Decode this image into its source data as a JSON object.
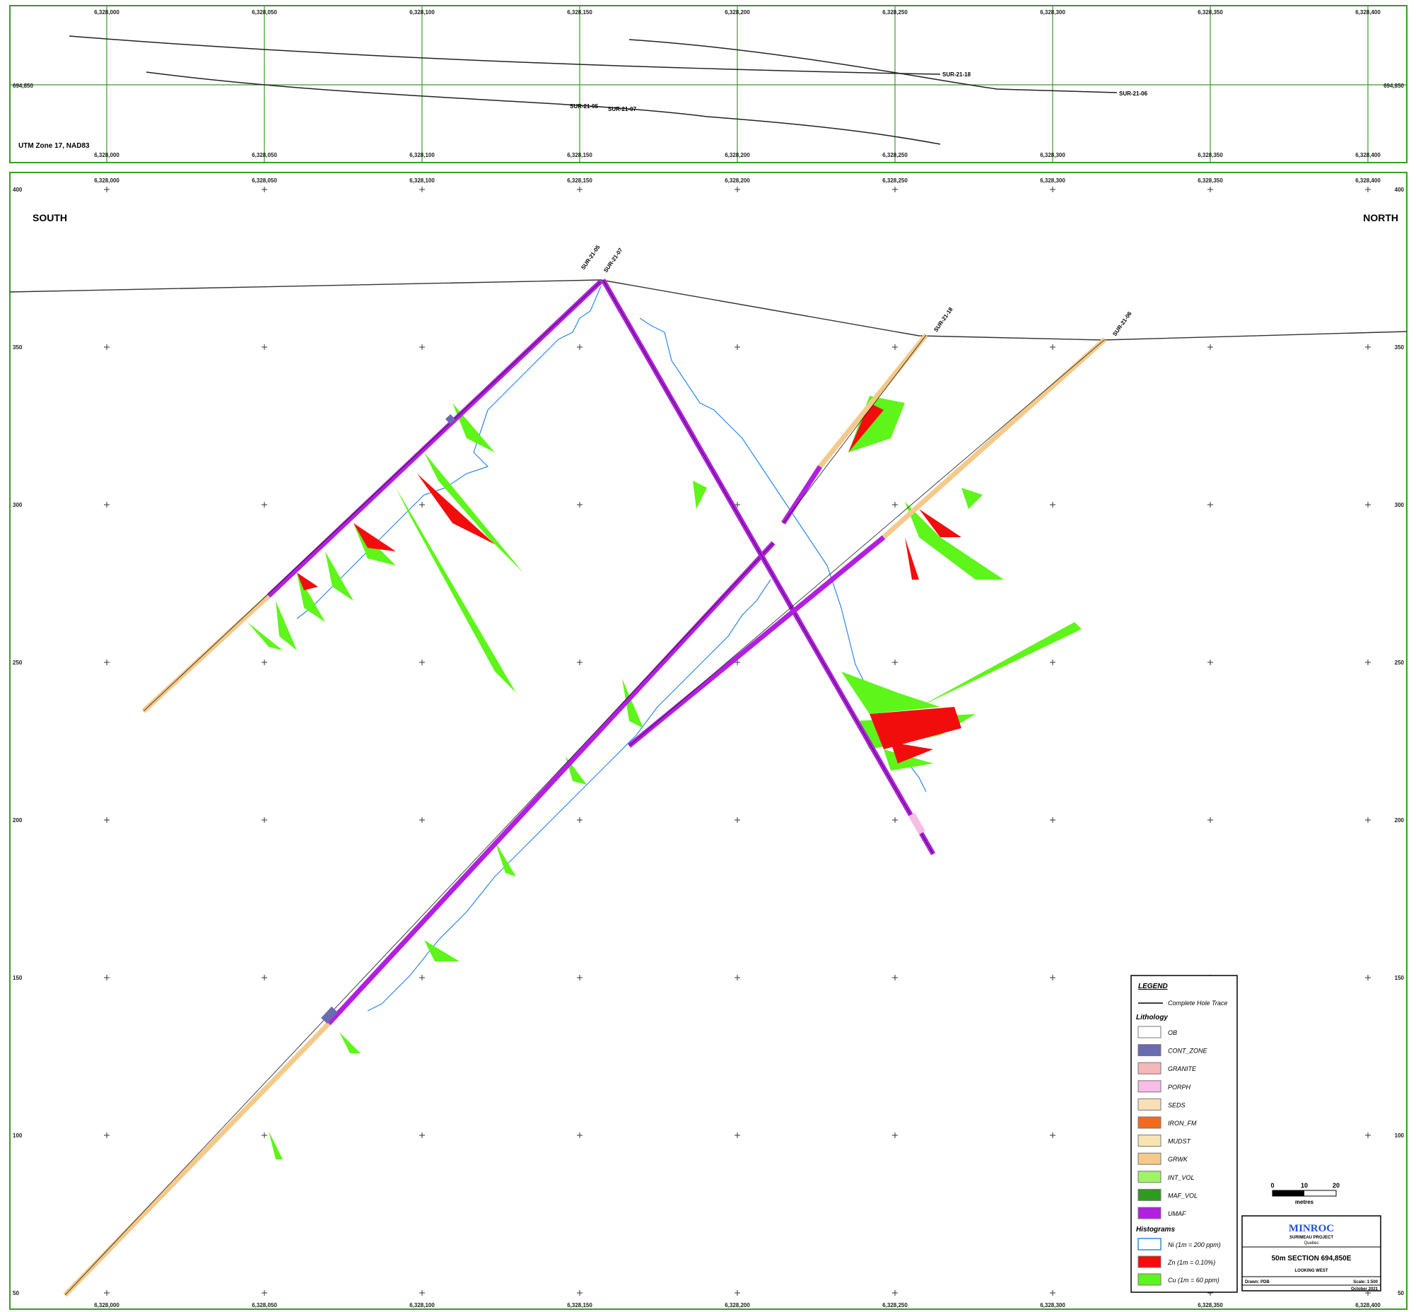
{
  "plan_view": {
    "crs_label": "UTM Zone 17, NAD83",
    "easting_ticks": [
      "6,328,000",
      "6,328,050",
      "6,328,100",
      "6,328,150",
      "6,328,200",
      "6,328,250",
      "6,328,300",
      "6,328,350",
      "6,328,400"
    ],
    "northing_label_left": "694,850",
    "northing_label_right": "694,850",
    "holes": [
      "SUR-21-18",
      "SUR-21-06",
      "SUR-21-05",
      "SUR-21-07"
    ]
  },
  "section_view": {
    "south_label": "SOUTH",
    "north_label": "NORTH",
    "easting_ticks": [
      "6,328,000",
      "6,328,050",
      "6,328,100",
      "6,328,150",
      "6,328,200",
      "6,328,250",
      "6,328,300",
      "6,328,350",
      "6,328,400"
    ],
    "elevation_ticks": [
      "400",
      "350",
      "300",
      "250",
      "200",
      "150",
      "100",
      "50"
    ],
    "holes": [
      {
        "name": "SUR-21-05",
        "collar": "SUR-21-05"
      },
      {
        "name": "SUR-21-07",
        "collar": "SUR-21-07"
      },
      {
        "name": "SUR-21-18",
        "collar": "SUR-21-18"
      },
      {
        "name": "SUR-21-06",
        "collar": "SUR-21-06"
      }
    ]
  },
  "legend": {
    "title": "LEGEND",
    "trace_label": "Complete Hole Trace",
    "lithology_heading": "Lithology",
    "lithology": [
      {
        "code": "OB",
        "color": "#ffffff"
      },
      {
        "code": "CONT_ZONE",
        "color": "#6b6bb0"
      },
      {
        "code": "GRANITE",
        "color": "#f5b8b8"
      },
      {
        "code": "PORPH",
        "color": "#f7bde6"
      },
      {
        "code": "SEDS",
        "color": "#f7dfb8"
      },
      {
        "code": "IRON_FM",
        "color": "#f26a1f"
      },
      {
        "code": "MUDST",
        "color": "#f7e4b0"
      },
      {
        "code": "GRWK",
        "color": "#f4c98a"
      },
      {
        "code": "INT_VOL",
        "color": "#9ff26a"
      },
      {
        "code": "MAF_VOL",
        "color": "#2e9b1f"
      },
      {
        "code": "UMAF",
        "color": "#b21fe0"
      }
    ],
    "histograms_heading": "Histograms",
    "histograms": [
      {
        "label": "Ni (1m = 200 ppm)",
        "color": "#2b87e8",
        "style": "outline"
      },
      {
        "label": "Zn (1m = 0.10%)",
        "color": "#f20d0d",
        "style": "fill"
      },
      {
        "label": "Cu (1m = 60 ppm)",
        "color": "#5ef51a",
        "style": "fill"
      }
    ]
  },
  "scale_bar": {
    "ticks": [
      "0",
      "10",
      "20"
    ],
    "unit": "metres"
  },
  "title_block": {
    "company": "MINROC",
    "project": "SURIMEAU PROJECT",
    "region": "Quebec",
    "section_title": "50m SECTION 694,850E",
    "view": "LOOKING WEST",
    "drawn_label": "Drawn: PDB",
    "scale_label": "Scale: 1:500",
    "date": "October 2021"
  },
  "colors": {
    "grid": "#3a9b2a",
    "frame": "#3a9b2a",
    "umaf": "#b21fe0",
    "grwk": "#f4c98a",
    "ni": "#2b87e8",
    "zn": "#f20d0d",
    "cu": "#5ef51a",
    "title_blue": "#1f4fd6"
  }
}
